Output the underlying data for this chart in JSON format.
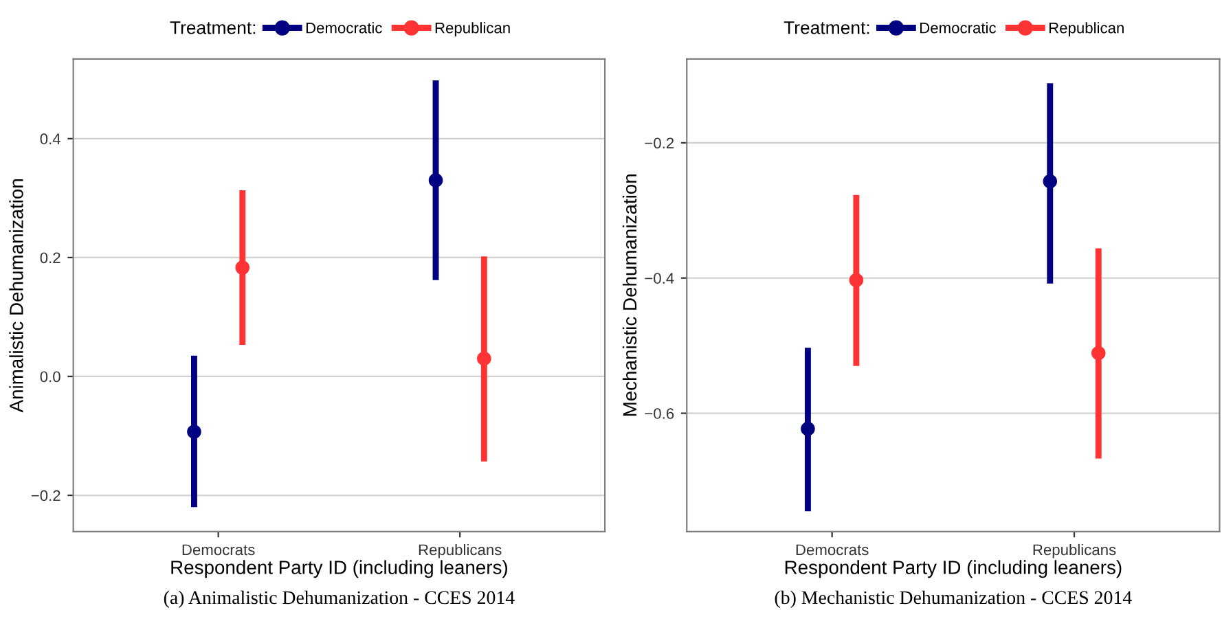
{
  "chart_data": [
    {
      "type": "scatter",
      "xlabel": "Respondent Party ID (including leaners)",
      "ylabel": "Animalistic Dehumanization",
      "legend_title": "Treatment:",
      "annotations": [
        "(a) Animalistic Dehumanization - CCES 2014"
      ],
      "categories": [
        "Democrats",
        "Republicans"
      ],
      "ylim": [
        -0.261,
        0.534
      ],
      "yticks": [
        {
          "value": -0.2,
          "label": "−0.2"
        },
        {
          "value": 0.0,
          "label": "0.0"
        },
        0.2,
        0.4
      ],
      "grid": "y",
      "legend": "top",
      "marker": "circle",
      "series": [
        {
          "name": "Democratic",
          "color": "#000080",
          "values": [
            -0.093,
            0.33
          ],
          "errors": [
            [
              -0.22,
              0.035
            ],
            [
              0.162,
              0.498
            ]
          ]
        },
        {
          "name": "Republican",
          "color": "#ff3333",
          "values": [
            0.183,
            0.03
          ],
          "errors": [
            [
              0.053,
              0.313
            ],
            [
              -0.143,
              0.202
            ]
          ]
        }
      ]
    },
    {
      "type": "scatter",
      "xlabel": "Respondent Party ID (including leaners)",
      "ylabel": "Mechanistic Dehumanization",
      "legend_title": "Treatment:",
      "annotations": [
        "(b) Mechanistic Dehumanization - CCES 2014"
      ],
      "categories": [
        "Democrats",
        "Republicans"
      ],
      "ylim": [
        -0.775,
        -0.076
      ],
      "yticks": [
        {
          "value": -0.6,
          "label": "−0.6"
        },
        {
          "value": -0.4,
          "label": "−0.4"
        },
        {
          "value": -0.2,
          "label": "−0.2"
        }
      ],
      "grid": "y",
      "legend": "top",
      "marker": "circle",
      "series": [
        {
          "name": "Democratic",
          "color": "#000080",
          "values": [
            -0.623,
            -0.257
          ],
          "errors": [
            [
              -0.745,
              -0.503
            ],
            [
              -0.408,
              -0.112
            ]
          ]
        },
        {
          "name": "Republican",
          "color": "#ff3333",
          "values": [
            -0.403,
            -0.511
          ],
          "errors": [
            [
              -0.53,
              -0.277
            ],
            [
              -0.667,
              -0.356
            ]
          ]
        }
      ]
    }
  ]
}
